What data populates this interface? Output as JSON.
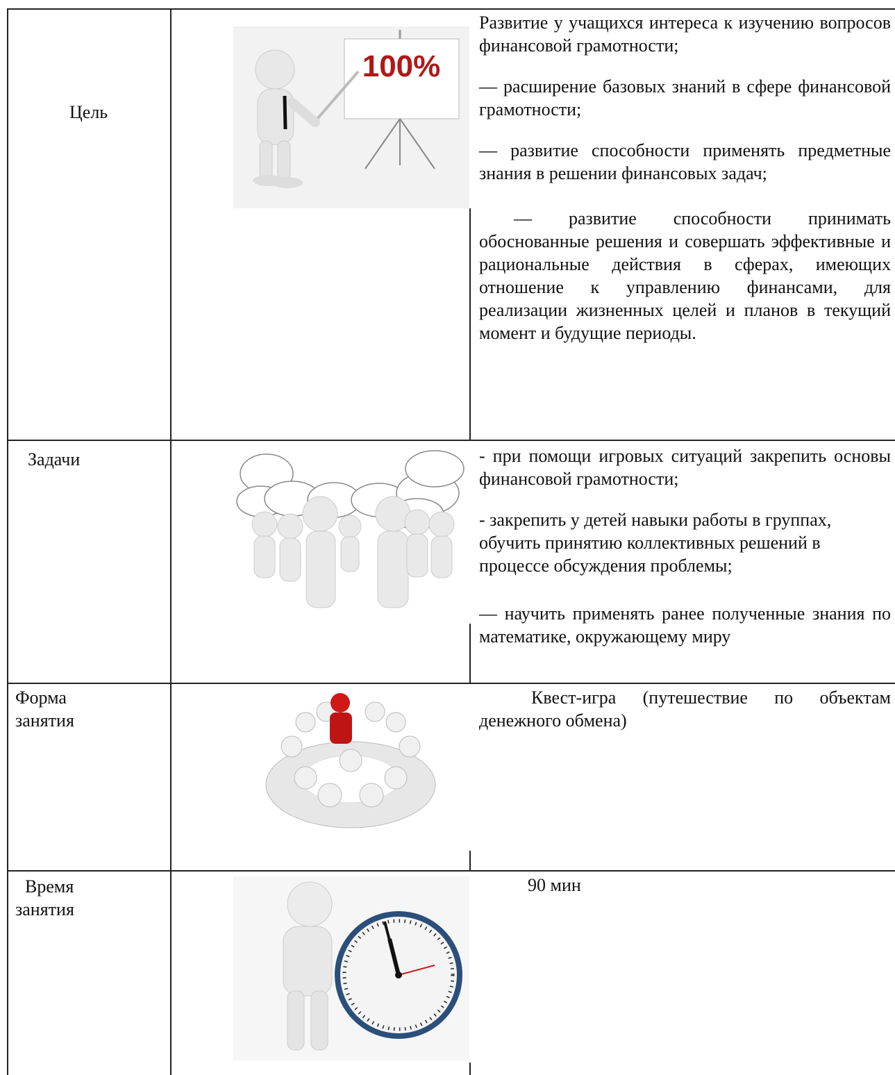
{
  "image_text": "100%",
  "table": {
    "rows": [
      {
        "label": "Цель",
        "paragraphs": [
          "Развитие у учащихся интереса к изучению вопросов финансовой грамотности;",
          "— расширение базовых знаний в сфере финансовой грамотности;",
          "— развитие способности применять предметные знания в решении финансовых задач;",
          "— развитие способности принимать обоснованные решения и совершать эффективные и рациональные действия в сферах, имеющих отношение к управлению финансами, для реализации жизненных целей и планов в текущий момент и будущие периоды."
        ]
      },
      {
        "label": "Задачи",
        "paragraphs": [
          "- при помощи игровых ситуаций закрепить основы финансовой грамотности;",
          "- закрепить у детей навыки работы в группах, обучить принятию коллективных решений в процессе обсуждения проблемы;",
          "— научить применять ранее полученные знания по математике, окружающему миру"
        ]
      },
      {
        "label": "Форма занятия",
        "paragraphs": [
          "Квест-игра (путешествие по объектам денежного обмена)"
        ]
      },
      {
        "label": "Время занятия",
        "paragraphs": [
          "90 мин"
        ]
      }
    ]
  }
}
